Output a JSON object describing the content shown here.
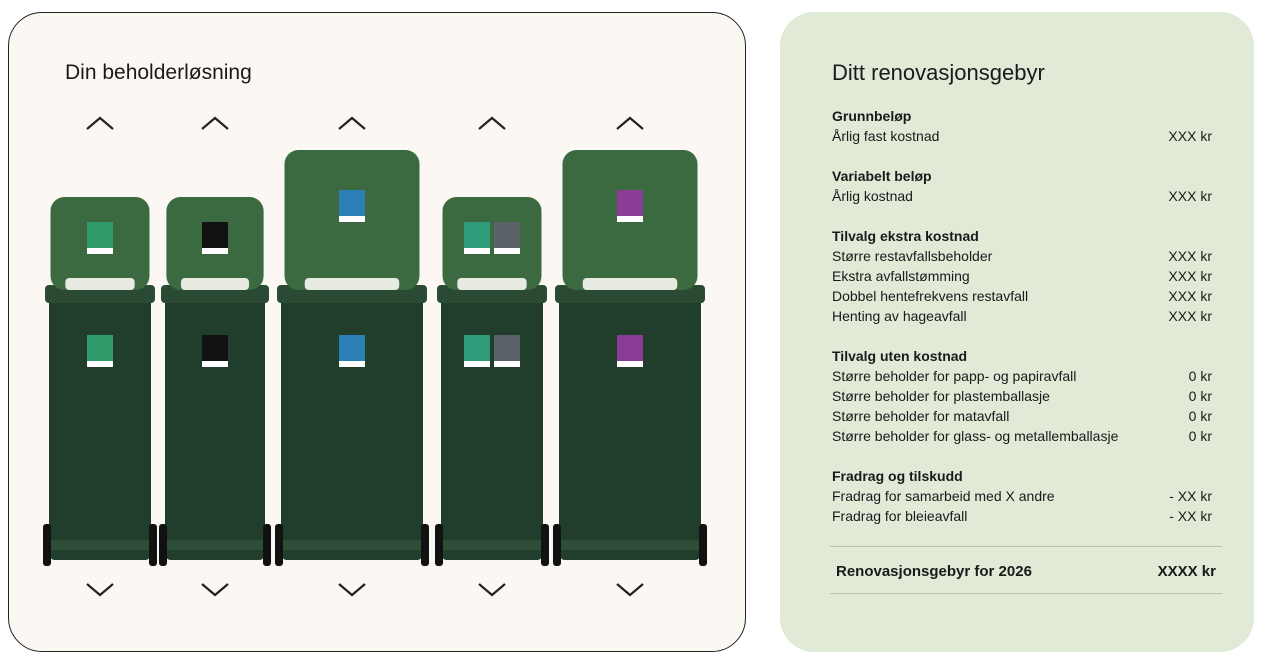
{
  "left": {
    "title": "Din beholderløsning"
  },
  "right": {
    "title": "Ditt renovasjonsgebyr",
    "sections": [
      {
        "heading": "Grunnbeløp",
        "rows": [
          {
            "label": "Årlig fast kostnad",
            "amount": "XXX kr"
          }
        ]
      },
      {
        "heading": "Variabelt beløp",
        "rows": [
          {
            "label": "Årlig kostnad",
            "amount": "XXX kr"
          }
        ]
      },
      {
        "heading": "Tilvalg ekstra kostnad",
        "rows": [
          {
            "label": "Større restavfallsbeholder",
            "amount": "XXX kr"
          },
          {
            "label": "Ekstra avfallstømming",
            "amount": "XXX kr"
          },
          {
            "label": "Dobbel hentefrekvens restavfall",
            "amount": "XXX kr"
          },
          {
            "label": "Henting av hageavfall",
            "amount": "XXX kr"
          }
        ]
      },
      {
        "heading": "Tilvalg uten kostnad",
        "rows": [
          {
            "label": "Større beholder for papp- og papiravfall",
            "amount": "0 kr"
          },
          {
            "label": "Større beholder for plastemballasje",
            "amount": "0 kr"
          },
          {
            "label": "Større beholder for matavfall",
            "amount": "0 kr"
          },
          {
            "label": "Større beholder for glass- og metallemballasje",
            "amount": "0 kr"
          }
        ]
      },
      {
        "heading": "Fradrag og tilskudd",
        "rows": [
          {
            "label": "Fradrag for samarbeid med X andre",
            "amount": "- XX kr"
          },
          {
            "label": "Fradrag for bleieavfall",
            "amount": "- XX kr"
          }
        ]
      }
    ],
    "total": {
      "label": "Renovasjonsgebyr for 2026",
      "amount": "XXXX kr"
    }
  }
}
